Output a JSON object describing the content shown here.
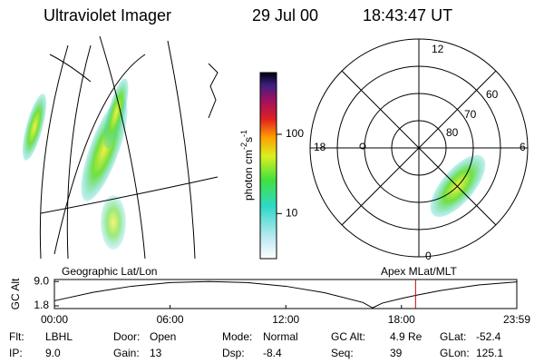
{
  "header": {
    "title": "Ultraviolet Imager",
    "date": "29 Jul 00",
    "time": "18:43:47 UT"
  },
  "polar_panel": {
    "mlt_labels": [
      "12",
      "18",
      "6",
      "0"
    ],
    "lat_labels": [
      "60",
      "70",
      "80"
    ]
  },
  "colorbar": {
    "type": "colorbar",
    "scale": "log",
    "lim": [
      2.7,
      600
    ],
    "ticks": [
      10,
      100
    ],
    "label": [
      "photon cm",
      "-2",
      "s",
      "-1"
    ]
  },
  "altitude_plot": {
    "type": "line",
    "left_label": "Geographic Lat/Lon",
    "right_label": "Apex MLat/MLT",
    "ylabel": "GC Alt",
    "color": "#000000",
    "marker_color": "#cc0000",
    "x": [
      0,
      2,
      4,
      6,
      8,
      10,
      12,
      14,
      16,
      16.5,
      17,
      18,
      18.73,
      20,
      22,
      23.98
    ],
    "values": [
      3.3,
      5.8,
      7.6,
      8.7,
      9.0,
      8.7,
      7.6,
      5.7,
      2.8,
      1.2,
      2.6,
      4.0,
      4.9,
      6.3,
      8.0,
      8.9
    ],
    "current_time": 18.73,
    "xlim": [
      0,
      23.98
    ],
    "ylim": [
      1.0,
      9.6
    ],
    "xticks": [
      {
        "value": 0,
        "label": "00:00"
      },
      {
        "value": 6,
        "label": "06:00"
      },
      {
        "value": 12,
        "label": "12:00"
      },
      {
        "value": 18,
        "label": "18:00"
      },
      {
        "value": 23.98,
        "label": "23:59"
      }
    ],
    "yticks": [
      {
        "value": 9.0,
        "label": "9.0"
      },
      {
        "value": 1.8,
        "label": "1.8"
      }
    ]
  },
  "status": {
    "rows": [
      [
        [
          "Flt:",
          "LBHL"
        ],
        [
          "Door:",
          "Open"
        ],
        [
          "Mode:",
          "Normal"
        ],
        [
          "GC Alt:",
          "4.9 Re"
        ],
        [
          "GLat:",
          "-52.4"
        ]
      ],
      [
        [
          "IP:",
          "9.0"
        ],
        [
          "Gain:",
          "13"
        ],
        [
          "Dsp:",
          "-8.4"
        ],
        [
          "Seq:",
          "39"
        ],
        [
          "GLon:",
          "125.1"
        ]
      ]
    ]
  }
}
